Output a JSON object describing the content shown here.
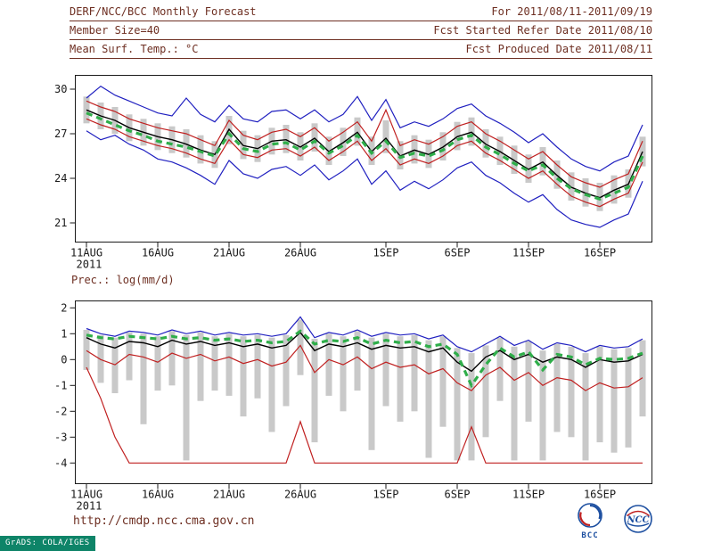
{
  "header": {
    "title": "DERF/NCC/BCC Monthly Forecast",
    "for_range": "For 2011/08/11-2011/09/19",
    "member_size": "Member Size=40",
    "refer_date": "Fcst Started Refer Date 2011/08/10",
    "var_label": "Mean Surf. Temp.: °C",
    "produced_date": "Fcst Produced Date 2011/08/11"
  },
  "prec_label": "Prec.: log(mm/d)",
  "footer": {
    "url": "http://cmdp.ncc.cma.gov.cn",
    "grads_stamp": "GrADS: COLA/IGES",
    "logo1_label": "BCC",
    "logo2_label": "NCC"
  },
  "colors": {
    "header_maroon": "#6e2f22",
    "axis": "#1a1a1a",
    "bar_gray": "#c9c9c9",
    "blue": "#2020c0",
    "red": "#c02020",
    "green": "#2fae4a",
    "stamp_bg": "#0e8468",
    "logo_blue": "#1d4fa0"
  },
  "chart_data": [
    {
      "type": "line",
      "name": "temperature",
      "title": "Mean Surf. Temp.: °C",
      "xlabel": "daily, 2011/08/11 - 2011/09/19",
      "ylabel": "°C",
      "n_days": 40,
      "x_start": "2011-08-11",
      "x_end": "2011-09-19",
      "x_tick_labels": [
        "11AUG",
        "16AUG",
        "21AUG",
        "26AUG",
        "1SEP",
        "6SEP",
        "11SEP",
        "16SEP"
      ],
      "x_tick_days": [
        0,
        5,
        10,
        15,
        21,
        26,
        31,
        36
      ],
      "x_year_label": "2011",
      "ylim": [
        19.71,
        30.93
      ],
      "yticks": [
        30,
        27,
        24,
        21
      ],
      "ytick_labels": [
        "30",
        "27",
        "24",
        "21"
      ],
      "grid": false,
      "legend": "none",
      "bars": {
        "label": "ensemble spread",
        "color": "#c9c9c9",
        "high": [
          29.5,
          29.1,
          28.8,
          28.3,
          28.0,
          27.7,
          27.5,
          27.3,
          26.9,
          26.5,
          28.2,
          27.2,
          26.9,
          27.4,
          27.6,
          27.1,
          27.7,
          26.8,
          27.4,
          28.1,
          26.8,
          27.9,
          26.5,
          26.9,
          26.6,
          27.1,
          27.8,
          28.1,
          27.3,
          26.8,
          26.2,
          25.6,
          26.1,
          25.2,
          24.4,
          24.0,
          23.7,
          24.2,
          24.6,
          26.8
        ],
        "low": [
          27.7,
          27.3,
          27.0,
          26.5,
          26.2,
          25.9,
          25.7,
          25.4,
          25.0,
          24.7,
          26.3,
          25.3,
          25.1,
          25.6,
          25.7,
          25.2,
          25.8,
          24.9,
          25.5,
          26.2,
          24.9,
          25.7,
          24.6,
          25.0,
          24.7,
          25.2,
          25.9,
          26.2,
          25.4,
          24.9,
          24.3,
          23.7,
          24.2,
          23.3,
          22.5,
          22.1,
          21.8,
          22.3,
          22.7,
          24.8
        ]
      },
      "series": [
        {
          "name": "ensemble-max-line",
          "color": "#2020c0",
          "width": 1.2,
          "values": [
            29.4,
            30.2,
            29.6,
            29.2,
            28.8,
            28.4,
            28.2,
            29.4,
            28.3,
            27.8,
            28.9,
            28.0,
            27.8,
            28.5,
            28.6,
            28.0,
            28.6,
            27.8,
            28.3,
            29.5,
            27.9,
            29.3,
            27.4,
            27.8,
            27.5,
            28.0,
            28.7,
            29.0,
            28.2,
            27.7,
            27.1,
            26.4,
            27.0,
            26.1,
            25.3,
            24.8,
            24.5,
            25.1,
            25.5,
            27.6
          ]
        },
        {
          "name": "upper-quartile-line",
          "color": "#c02020",
          "width": 1.2,
          "values": [
            29.2,
            28.8,
            28.5,
            28.0,
            27.7,
            27.4,
            27.2,
            27.0,
            26.6,
            26.2,
            27.9,
            26.9,
            26.6,
            27.1,
            27.3,
            26.8,
            27.4,
            26.5,
            27.1,
            27.8,
            26.5,
            28.6,
            26.2,
            26.6,
            26.3,
            26.8,
            27.5,
            27.8,
            27.0,
            26.5,
            25.9,
            25.3,
            25.8,
            24.9,
            24.1,
            23.7,
            23.4,
            23.9,
            24.3,
            26.5
          ]
        },
        {
          "name": "lower-quartile-line",
          "color": "#c02020",
          "width": 1.2,
          "values": [
            28.0,
            27.6,
            27.3,
            26.8,
            26.5,
            26.2,
            26.0,
            25.7,
            25.3,
            25.0,
            26.6,
            25.6,
            25.4,
            25.9,
            26.0,
            25.5,
            26.1,
            25.2,
            25.8,
            26.5,
            25.2,
            26.0,
            24.9,
            25.3,
            25.0,
            25.5,
            26.2,
            26.5,
            25.7,
            25.2,
            24.6,
            24.0,
            24.5,
            23.6,
            22.8,
            22.4,
            22.1,
            22.6,
            23.0,
            25.1
          ]
        },
        {
          "name": "ensemble-min-line",
          "color": "#2020c0",
          "width": 1.2,
          "values": [
            27.2,
            26.6,
            26.9,
            26.3,
            25.9,
            25.3,
            25.1,
            24.7,
            24.2,
            23.6,
            25.2,
            24.3,
            24.0,
            24.6,
            24.8,
            24.2,
            24.9,
            23.9,
            24.5,
            25.3,
            23.6,
            24.5,
            23.2,
            23.8,
            23.3,
            23.9,
            24.7,
            25.1,
            24.2,
            23.7,
            23.0,
            22.4,
            22.9,
            21.9,
            21.2,
            20.9,
            20.7,
            21.2,
            21.6,
            23.8
          ]
        },
        {
          "name": "ensemble-mean-line",
          "color": "#000000",
          "width": 1.4,
          "values": [
            28.6,
            28.2,
            27.9,
            27.4,
            27.1,
            26.8,
            26.6,
            26.3,
            25.9,
            25.6,
            27.3,
            26.2,
            26.0,
            26.5,
            26.6,
            26.1,
            26.7,
            25.8,
            26.4,
            27.1,
            25.8,
            26.7,
            25.5,
            25.9,
            25.6,
            26.1,
            26.8,
            27.1,
            26.3,
            25.8,
            25.2,
            24.6,
            25.1,
            24.2,
            23.4,
            23.0,
            22.7,
            23.2,
            23.6,
            25.8
          ]
        },
        {
          "name": "climatology-dashed-line",
          "color": "#2fae4a",
          "width": 3.2,
          "style": "dashed",
          "values": [
            28.4,
            28.0,
            27.6,
            27.2,
            26.9,
            26.5,
            26.3,
            26.1,
            25.8,
            25.5,
            27.0,
            26.0,
            25.8,
            26.3,
            26.4,
            25.9,
            26.5,
            25.7,
            26.2,
            26.9,
            25.7,
            26.5,
            25.4,
            25.7,
            25.5,
            25.9,
            26.6,
            26.9,
            26.1,
            25.6,
            25.0,
            24.5,
            24.9,
            24.0,
            23.3,
            22.9,
            22.6,
            23.0,
            23.4,
            25.5
          ]
        }
      ]
    },
    {
      "type": "line",
      "name": "precipitation",
      "title": "Prec.: log(mm/d)",
      "xlabel": "daily, 2011/08/11 - 2011/09/19",
      "ylabel": "log(mm/d)",
      "n_days": 40,
      "x_start": "2011-08-11",
      "x_end": "2011-09-19",
      "x_tick_labels": [
        "11AUG",
        "16AUG",
        "21AUG",
        "26AUG",
        "1SEP",
        "6SEP",
        "11SEP",
        "16SEP"
      ],
      "x_tick_days": [
        0,
        5,
        10,
        15,
        21,
        26,
        31,
        36
      ],
      "x_year_label": "2011",
      "ylim": [
        -4.8,
        2.27
      ],
      "yticks": [
        2,
        1,
        0,
        -1,
        -2,
        -3,
        -4
      ],
      "ytick_labels": [
        "2",
        "1",
        "0",
        "-1",
        "-2",
        "-3",
        "-4"
      ],
      "grid": false,
      "legend": "none",
      "bars": {
        "label": "ensemble spread",
        "color": "#c9c9c9",
        "high": [
          1.15,
          0.95,
          0.85,
          1.05,
          1.0,
          0.9,
          1.1,
          0.95,
          1.05,
          0.9,
          1.0,
          0.9,
          0.95,
          0.85,
          0.95,
          1.55,
          0.8,
          1.0,
          0.9,
          1.1,
          0.85,
          1.0,
          0.9,
          0.95,
          0.75,
          0.9,
          0.45,
          0.25,
          0.55,
          0.85,
          0.5,
          0.7,
          0.35,
          0.6,
          0.5,
          0.25,
          0.5,
          0.4,
          0.45,
          0.75
        ],
        "low": [
          -0.4,
          -0.9,
          -1.3,
          -0.8,
          -2.5,
          -1.2,
          -1.0,
          -3.9,
          -1.6,
          -1.2,
          -1.4,
          -2.2,
          -1.5,
          -2.8,
          -1.8,
          -0.6,
          -3.2,
          -1.4,
          -2.0,
          -1.2,
          -3.5,
          -1.8,
          -2.4,
          -2.0,
          -3.8,
          -2.6,
          -3.9,
          -3.9,
          -3.0,
          -1.6,
          -3.9,
          -2.4,
          -3.9,
          -2.8,
          -3.0,
          -3.9,
          -3.2,
          -3.6,
          -3.4,
          -2.2
        ]
      },
      "series": [
        {
          "name": "ensemble-max-line",
          "color": "#2020c0",
          "width": 1.2,
          "values": [
            1.2,
            1.0,
            0.9,
            1.1,
            1.05,
            0.95,
            1.15,
            1.0,
            1.1,
            0.95,
            1.05,
            0.95,
            1.0,
            0.9,
            1.0,
            1.65,
            0.85,
            1.05,
            0.95,
            1.15,
            0.9,
            1.05,
            0.95,
            1.0,
            0.8,
            0.95,
            0.5,
            0.3,
            0.6,
            0.9,
            0.55,
            0.75,
            0.4,
            0.65,
            0.55,
            0.3,
            0.55,
            0.45,
            0.5,
            0.8
          ]
        },
        {
          "name": "lower-quartile-line",
          "color": "#c02020",
          "width": 1.2,
          "values": [
            0.35,
            0.0,
            -0.2,
            0.2,
            0.1,
            -0.1,
            0.25,
            0.05,
            0.2,
            -0.05,
            0.1,
            -0.15,
            0.0,
            -0.25,
            -0.1,
            0.55,
            -0.5,
            0.0,
            -0.2,
            0.1,
            -0.35,
            -0.1,
            -0.3,
            -0.2,
            -0.55,
            -0.35,
            -0.9,
            -1.2,
            -0.6,
            -0.3,
            -0.8,
            -0.5,
            -1.0,
            -0.7,
            -0.8,
            -1.2,
            -0.9,
            -1.1,
            -1.05,
            -0.7
          ]
        },
        {
          "name": "ensemble-min-line",
          "color": "#c02020",
          "width": 1.2,
          "values": [
            -0.3,
            -1.5,
            -3.0,
            -4,
            -4,
            -4,
            -4,
            -4,
            -4,
            -4,
            -4,
            -4,
            -4,
            -4,
            -4,
            -2.4,
            -4,
            -4,
            -4,
            -4,
            -4,
            -4,
            -4,
            -4,
            -4,
            -4,
            -4,
            -2.6,
            -4,
            -4,
            -4,
            -4,
            -4,
            -4,
            -4,
            -4,
            -4,
            -4,
            -4,
            -4
          ]
        },
        {
          "name": "ensemble-mean-line",
          "color": "#000000",
          "width": 1.4,
          "values": [
            0.85,
            0.6,
            0.45,
            0.7,
            0.65,
            0.5,
            0.75,
            0.6,
            0.7,
            0.55,
            0.65,
            0.5,
            0.6,
            0.45,
            0.55,
            1.05,
            0.35,
            0.6,
            0.5,
            0.65,
            0.4,
            0.55,
            0.45,
            0.5,
            0.3,
            0.45,
            -0.1,
            -0.45,
            0.1,
            0.35,
            0.0,
            0.2,
            -0.1,
            0.1,
            0.0,
            -0.3,
            0.0,
            -0.1,
            -0.05,
            0.2
          ]
        },
        {
          "name": "climatology-dashed-line",
          "color": "#2fae4a",
          "width": 3.2,
          "style": "dashed",
          "values": [
            0.95,
            0.85,
            0.8,
            0.9,
            0.85,
            0.8,
            0.9,
            0.8,
            0.85,
            0.75,
            0.8,
            0.7,
            0.75,
            0.65,
            0.7,
            1.1,
            0.6,
            0.75,
            0.7,
            0.85,
            0.6,
            0.75,
            0.65,
            0.7,
            0.5,
            0.6,
            0.2,
            -1.0,
            -0.2,
            0.45,
            0.1,
            0.3,
            -0.4,
            0.2,
            0.1,
            -0.2,
            0.05,
            0.0,
            0.05,
            0.25
          ]
        }
      ]
    }
  ]
}
